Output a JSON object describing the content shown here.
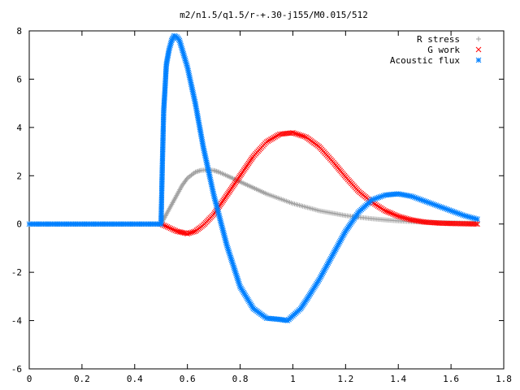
{
  "chart_data": {
    "type": "scatter",
    "title": "m2/n1.5/q1.5/r-+.30-j155/M0.015/512",
    "xlabel": "",
    "ylabel": "",
    "xlim": [
      0,
      1.8
    ],
    "ylim": [
      -6,
      8
    ],
    "grid": false,
    "legend_position": "top-right",
    "xticks": [
      "0",
      "0.2",
      "0.4",
      "0.6",
      "0.8",
      "1",
      "1.2",
      "1.4",
      "1.6",
      "1.8"
    ],
    "yticks": [
      "-6",
      "-4",
      "-2",
      "0",
      "2",
      "4",
      "6",
      "8"
    ],
    "series": [
      {
        "name": "R stress",
        "marker": "plus",
        "color": "#a0a0a0",
        "x": [
          0.0,
          0.5,
          0.52,
          0.55,
          0.58,
          0.6,
          0.63,
          0.65,
          0.68,
          0.7,
          0.72,
          0.75,
          0.8,
          0.85,
          0.9,
          0.95,
          1.0,
          1.05,
          1.1,
          1.15,
          1.2,
          1.25,
          1.3,
          1.35,
          1.4,
          1.45,
          1.5,
          1.55,
          1.6,
          1.65,
          1.7
        ],
        "y": [
          0.0,
          0.0,
          0.4,
          1.0,
          1.6,
          1.9,
          2.15,
          2.22,
          2.25,
          2.22,
          2.15,
          2.0,
          1.75,
          1.5,
          1.25,
          1.05,
          0.85,
          0.7,
          0.55,
          0.45,
          0.35,
          0.28,
          0.22,
          0.17,
          0.13,
          0.1,
          0.08,
          0.06,
          0.05,
          0.04,
          0.03
        ]
      },
      {
        "name": "G work",
        "marker": "cross",
        "color": "#ff0000",
        "x": [
          0.5,
          0.53,
          0.56,
          0.6,
          0.63,
          0.66,
          0.7,
          0.75,
          0.8,
          0.85,
          0.9,
          0.95,
          1.0,
          1.05,
          1.1,
          1.15,
          1.2,
          1.25,
          1.3,
          1.35,
          1.4,
          1.45,
          1.5,
          1.55,
          1.6,
          1.65,
          1.7
        ],
        "y": [
          0.0,
          -0.15,
          -0.3,
          -0.4,
          -0.3,
          -0.05,
          0.4,
          1.2,
          2.0,
          2.8,
          3.4,
          3.72,
          3.78,
          3.6,
          3.2,
          2.6,
          1.95,
          1.35,
          0.9,
          0.55,
          0.32,
          0.17,
          0.08,
          0.04,
          0.02,
          0.01,
          0.0
        ]
      },
      {
        "name": "Acoustic flux",
        "marker": "star",
        "color": "#0080ff",
        "x": [
          0.0,
          0.5,
          0.505,
          0.51,
          0.515,
          0.52,
          0.53,
          0.54,
          0.55,
          0.56,
          0.57,
          0.6,
          0.63,
          0.66,
          0.7,
          0.75,
          0.8,
          0.85,
          0.9,
          0.95,
          0.98,
          1.0,
          1.03,
          1.06,
          1.1,
          1.15,
          1.2,
          1.25,
          1.3,
          1.35,
          1.4,
          1.45,
          1.5,
          1.55,
          1.6,
          1.65,
          1.7
        ],
        "y": [
          0.0,
          0.0,
          2.5,
          4.7,
          5.6,
          6.6,
          7.2,
          7.6,
          7.8,
          7.75,
          7.6,
          6.5,
          5.0,
          3.2,
          1.2,
          -0.9,
          -2.6,
          -3.5,
          -3.9,
          -3.95,
          -4.0,
          -3.8,
          -3.5,
          -3.0,
          -2.3,
          -1.3,
          -0.3,
          0.5,
          1.0,
          1.2,
          1.25,
          1.15,
          0.95,
          0.75,
          0.55,
          0.35,
          0.2
        ]
      }
    ]
  }
}
